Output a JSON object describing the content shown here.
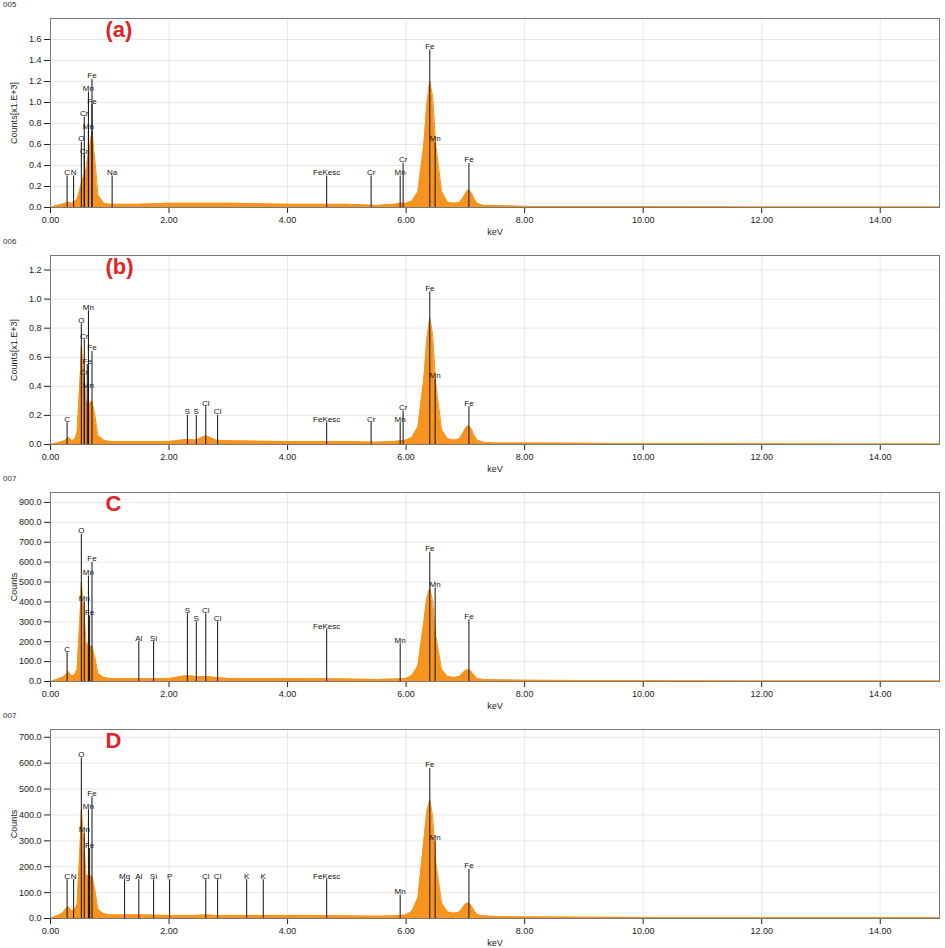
{
  "chart_data": [
    {
      "type": "area",
      "title": "005",
      "annotations": [
        {
          "text": "(a)",
          "color": "#e0252a"
        }
      ],
      "x_label": "keV",
      "y_label": "Counts[x1.E+3]",
      "color": "#f7941d",
      "grid": true,
      "xlim": [
        0,
        15
      ],
      "xticks": [
        {
          "value": 0,
          "label": "0.00"
        },
        {
          "value": 2,
          "label": "2.00"
        },
        {
          "value": 4,
          "label": "4.00"
        },
        {
          "value": 6,
          "label": "6.00"
        },
        {
          "value": 8,
          "label": "8.00"
        },
        {
          "value": 10,
          "label": "10.00"
        },
        {
          "value": 12,
          "label": "12.00"
        },
        {
          "value": 14,
          "label": "14.00"
        }
      ],
      "ylim": [
        0,
        1.8
      ],
      "yticks": [
        {
          "value": 0,
          "label": "0.0"
        },
        0.2,
        0.4,
        0.6,
        0.8,
        {
          "value": 1,
          "label": "1.0"
        },
        1.2,
        1.4,
        1.6
      ],
      "x": [
        0,
        0.1,
        0.2,
        0.25,
        0.3,
        0.35,
        0.4,
        0.45,
        0.5,
        0.55,
        0.6,
        0.65,
        0.7,
        0.75,
        0.8,
        0.9,
        1.0,
        1.5,
        2.0,
        3.0,
        4.0,
        5.0,
        5.5,
        5.8,
        5.9,
        6.0,
        6.1,
        6.2,
        6.3,
        6.35,
        6.4,
        6.45,
        6.5,
        6.6,
        6.7,
        6.8,
        6.9,
        6.95,
        7.0,
        7.05,
        7.1,
        7.15,
        7.2,
        7.3,
        7.5,
        8.0,
        9.0,
        10,
        12,
        14,
        15
      ],
      "values": [
        0,
        0.02,
        0.03,
        0.04,
        0.05,
        0.04,
        0.05,
        0.08,
        0.18,
        0.28,
        0.36,
        0.55,
        0.72,
        0.45,
        0.12,
        0.04,
        0.03,
        0.03,
        0.04,
        0.04,
        0.03,
        0.03,
        0.02,
        0.03,
        0.04,
        0.04,
        0.06,
        0.15,
        0.6,
        0.98,
        1.2,
        1.05,
        0.6,
        0.15,
        0.05,
        0.04,
        0.05,
        0.08,
        0.13,
        0.17,
        0.14,
        0.08,
        0.04,
        0.02,
        0.02,
        0.01,
        0.01,
        0.01,
        0.005,
        0.005,
        0.005
      ],
      "peak_labels": [
        {
          "text": "C",
          "x": 0.28,
          "y": 0.3
        },
        {
          "text": "N",
          "x": 0.39,
          "y": 0.3
        },
        {
          "text": "Cr",
          "x": 0.57,
          "y": 0.5
        },
        {
          "text": "O",
          "x": 0.52,
          "y": 0.62
        },
        {
          "text": "Mn",
          "x": 0.64,
          "y": 0.74
        },
        {
          "text": "Cr",
          "x": 0.57,
          "y": 0.86
        },
        {
          "text": "Fe",
          "x": 0.7,
          "y": 0.98
        },
        {
          "text": "Mn",
          "x": 0.64,
          "y": 1.1
        },
        {
          "text": "Fe",
          "x": 0.7,
          "y": 1.22
        },
        {
          "text": "Na",
          "x": 1.04,
          "y": 0.3
        },
        {
          "text": "FeKesc",
          "x": 4.66,
          "y": 0.3
        },
        {
          "text": "Cr",
          "x": 5.41,
          "y": 0.3
        },
        {
          "text": "Mn",
          "x": 5.9,
          "y": 0.3
        },
        {
          "text": "Cr",
          "x": 5.95,
          "y": 0.42
        },
        {
          "text": "Fe",
          "x": 6.4,
          "y": 1.5
        },
        {
          "text": "Mn",
          "x": 6.49,
          "y": 0.62
        },
        {
          "text": "Fe",
          "x": 7.06,
          "y": 0.42
        }
      ]
    },
    {
      "type": "area",
      "title": "006",
      "annotations": [
        {
          "text": "(b)",
          "color": "#e0252a"
        }
      ],
      "x_label": "keV",
      "y_label": "Counts[x1.E+3]",
      "color": "#f7941d",
      "grid": true,
      "xlim": [
        0,
        15
      ],
      "xticks": [
        {
          "value": 0,
          "label": "0.00"
        },
        {
          "value": 2,
          "label": "2.00"
        },
        {
          "value": 4,
          "label": "4.00"
        },
        {
          "value": 6,
          "label": "6.00"
        },
        {
          "value": 8,
          "label": "8.00"
        },
        {
          "value": 10,
          "label": "10.00"
        },
        {
          "value": 12,
          "label": "12.00"
        },
        {
          "value": 14,
          "label": "14.00"
        }
      ],
      "ylim": [
        0,
        1.3
      ],
      "yticks": [
        {
          "value": 0,
          "label": "0.0"
        },
        0.2,
        0.4,
        0.6,
        0.8,
        {
          "value": 1,
          "label": "1.0"
        },
        1.2
      ],
      "x": [
        0,
        0.1,
        0.2,
        0.25,
        0.3,
        0.35,
        0.4,
        0.45,
        0.5,
        0.52,
        0.55,
        0.6,
        0.65,
        0.7,
        0.75,
        0.8,
        0.9,
        1.0,
        1.5,
        2.0,
        2.3,
        2.45,
        2.62,
        2.8,
        3.0,
        4.0,
        5.0,
        5.5,
        5.8,
        6.0,
        6.1,
        6.2,
        6.3,
        6.35,
        6.4,
        6.45,
        6.5,
        6.6,
        6.7,
        6.8,
        6.9,
        6.95,
        7.0,
        7.05,
        7.1,
        7.15,
        7.2,
        7.3,
        7.5,
        8.0,
        9.0,
        10,
        12,
        14,
        15
      ],
      "values": [
        0,
        0.01,
        0.02,
        0.03,
        0.05,
        0.03,
        0.03,
        0.08,
        0.45,
        0.68,
        0.55,
        0.3,
        0.28,
        0.3,
        0.2,
        0.06,
        0.03,
        0.02,
        0.02,
        0.02,
        0.035,
        0.03,
        0.06,
        0.03,
        0.025,
        0.02,
        0.02,
        0.015,
        0.02,
        0.03,
        0.05,
        0.12,
        0.45,
        0.72,
        0.87,
        0.75,
        0.42,
        0.1,
        0.04,
        0.03,
        0.04,
        0.07,
        0.11,
        0.13,
        0.11,
        0.06,
        0.03,
        0.015,
        0.01,
        0.01,
        0.008,
        0.006,
        0.005,
        0.004,
        0.004
      ],
      "peak_labels": [
        {
          "text": "C",
          "x": 0.28,
          "y": 0.15
        },
        {
          "text": "Mn",
          "x": 0.64,
          "y": 0.38
        },
        {
          "text": "Cr",
          "x": 0.57,
          "y": 0.47
        },
        {
          "text": "Fe",
          "x": 0.62,
          "y": 0.55
        },
        {
          "text": "Fe",
          "x": 0.7,
          "y": 0.64
        },
        {
          "text": "Cr",
          "x": 0.57,
          "y": 0.72
        },
        {
          "text": "O",
          "x": 0.52,
          "y": 0.83
        },
        {
          "text": "Mn",
          "x": 0.64,
          "y": 0.92
        },
        {
          "text": "S",
          "x": 2.31,
          "y": 0.2
        },
        {
          "text": "S",
          "x": 2.46,
          "y": 0.2
        },
        {
          "text": "Cl",
          "x": 2.62,
          "y": 0.26
        },
        {
          "text": "Cl",
          "x": 2.82,
          "y": 0.2
        },
        {
          "text": "FeKesc",
          "x": 4.66,
          "y": 0.15
        },
        {
          "text": "Cr",
          "x": 5.41,
          "y": 0.15
        },
        {
          "text": "Mn",
          "x": 5.9,
          "y": 0.15
        },
        {
          "text": "Cr",
          "x": 5.95,
          "y": 0.23
        },
        {
          "text": "Fe",
          "x": 6.4,
          "y": 1.05
        },
        {
          "text": "Mn",
          "x": 6.49,
          "y": 0.45
        },
        {
          "text": "Fe",
          "x": 7.06,
          "y": 0.26
        }
      ]
    },
    {
      "type": "area",
      "title": "007",
      "annotations": [
        {
          "text": "C",
          "color": "#e0252a"
        }
      ],
      "x_label": "keV",
      "y_label": "Counts",
      "color": "#f7941d",
      "grid": true,
      "xlim": [
        0,
        15
      ],
      "xticks": [
        {
          "value": 0,
          "label": "0.00"
        },
        {
          "value": 2,
          "label": "2.00"
        },
        {
          "value": 4,
          "label": "4.00"
        },
        {
          "value": 6,
          "label": "6.00"
        },
        {
          "value": 8,
          "label": "8.00"
        },
        {
          "value": 10,
          "label": "10.00"
        },
        {
          "value": 12,
          "label": "12.00"
        },
        {
          "value": 14,
          "label": "14.00"
        }
      ],
      "ylim": [
        0,
        950
      ],
      "yticks": [
        {
          "value": 0,
          "label": "0.0"
        },
        {
          "value": 100,
          "label": "100.0"
        },
        {
          "value": 200,
          "label": "200.0"
        },
        {
          "value": 300,
          "label": "300.0"
        },
        {
          "value": 400,
          "label": "400.0"
        },
        {
          "value": 500,
          "label": "500.0"
        },
        {
          "value": 600,
          "label": "600.0"
        },
        {
          "value": 700,
          "label": "700.0"
        },
        {
          "value": 800,
          "label": "800.0"
        },
        {
          "value": 900,
          "label": "900.0"
        }
      ],
      "x": [
        0,
        0.1,
        0.2,
        0.25,
        0.3,
        0.35,
        0.4,
        0.45,
        0.5,
        0.52,
        0.55,
        0.6,
        0.65,
        0.7,
        0.75,
        0.8,
        0.9,
        1.0,
        1.5,
        2.0,
        2.3,
        2.45,
        2.62,
        2.8,
        3.0,
        4.0,
        5.0,
        5.5,
        5.8,
        6.0,
        6.1,
        6.2,
        6.3,
        6.35,
        6.4,
        6.45,
        6.5,
        6.6,
        6.7,
        6.8,
        6.9,
        6.95,
        7.0,
        7.05,
        7.1,
        7.15,
        7.2,
        7.3,
        7.5,
        8.0,
        9.0,
        10,
        12,
        14,
        15
      ],
      "values": [
        0,
        10,
        20,
        30,
        50,
        30,
        30,
        60,
        330,
        500,
        400,
        200,
        170,
        180,
        120,
        40,
        20,
        15,
        15,
        15,
        30,
        25,
        25,
        20,
        15,
        15,
        12,
        10,
        12,
        15,
        30,
        80,
        300,
        420,
        470,
        400,
        230,
        60,
        25,
        20,
        25,
        40,
        55,
        60,
        50,
        30,
        15,
        10,
        8,
        6,
        5,
        4,
        3,
        3,
        3
      ],
      "peak_labels": [
        {
          "text": "C",
          "x": 0.28,
          "y": 145
        },
        {
          "text": "Fe",
          "x": 0.66,
          "y": 330
        },
        {
          "text": "Mn",
          "x": 0.57,
          "y": 400
        },
        {
          "text": "Mn",
          "x": 0.64,
          "y": 530
        },
        {
          "text": "Fe",
          "x": 0.7,
          "y": 600
        },
        {
          "text": "O",
          "x": 0.52,
          "y": 740
        },
        {
          "text": "Al",
          "x": 1.49,
          "y": 200
        },
        {
          "text": "Si",
          "x": 1.74,
          "y": 200
        },
        {
          "text": "S",
          "x": 2.31,
          "y": 340
        },
        {
          "text": "S",
          "x": 2.46,
          "y": 300
        },
        {
          "text": "Cl",
          "x": 2.62,
          "y": 340
        },
        {
          "text": "Cl",
          "x": 2.82,
          "y": 300
        },
        {
          "text": "FeKesc",
          "x": 4.66,
          "y": 260
        },
        {
          "text": "Mn",
          "x": 5.9,
          "y": 190
        },
        {
          "text": "Fe",
          "x": 6.4,
          "y": 650
        },
        {
          "text": "Mn",
          "x": 6.49,
          "y": 470
        },
        {
          "text": "Fe",
          "x": 7.06,
          "y": 310
        }
      ]
    },
    {
      "type": "area",
      "title": "007",
      "annotations": [
        {
          "text": "D",
          "color": "#e0252a"
        }
      ],
      "x_label": "keV",
      "y_label": "Counts",
      "color": "#f7941d",
      "grid": true,
      "xlim": [
        0,
        15
      ],
      "xticks": [
        {
          "value": 0,
          "label": "0.00"
        },
        {
          "value": 2,
          "label": "2.00"
        },
        {
          "value": 4,
          "label": "4.00"
        },
        {
          "value": 6,
          "label": "6.00"
        },
        {
          "value": 8,
          "label": "8.00"
        },
        {
          "value": 10,
          "label": "10.00"
        },
        {
          "value": 12,
          "label": "12.00"
        },
        {
          "value": 14,
          "label": "14.00"
        }
      ],
      "ylim": [
        0,
        730
      ],
      "yticks": [
        {
          "value": 0,
          "label": "0.0"
        },
        {
          "value": 100,
          "label": "100.0"
        },
        {
          "value": 200,
          "label": "200.0"
        },
        {
          "value": 300,
          "label": "300.0"
        },
        {
          "value": 400,
          "label": "400.0"
        },
        {
          "value": 500,
          "label": "500.0"
        },
        {
          "value": 600,
          "label": "600.0"
        },
        {
          "value": 700,
          "label": "700.0"
        }
      ],
      "x": [
        0,
        0.1,
        0.2,
        0.25,
        0.3,
        0.35,
        0.4,
        0.45,
        0.5,
        0.52,
        0.55,
        0.6,
        0.65,
        0.7,
        0.75,
        0.8,
        0.9,
        1.0,
        1.5,
        2.0,
        2.3,
        2.45,
        2.62,
        2.8,
        3.0,
        4.0,
        5.0,
        5.5,
        5.8,
        6.0,
        6.1,
        6.2,
        6.3,
        6.35,
        6.4,
        6.45,
        6.5,
        6.6,
        6.7,
        6.8,
        6.9,
        6.95,
        7.0,
        7.05,
        7.1,
        7.15,
        7.2,
        7.3,
        7.5,
        8.0,
        9.0,
        10,
        12,
        14,
        15
      ],
      "values": [
        0,
        10,
        20,
        35,
        45,
        30,
        30,
        55,
        280,
        420,
        330,
        170,
        160,
        165,
        110,
        35,
        18,
        14,
        14,
        12,
        12,
        12,
        14,
        12,
        12,
        12,
        10,
        9,
        10,
        14,
        28,
        80,
        300,
        410,
        460,
        390,
        220,
        60,
        25,
        20,
        25,
        40,
        55,
        60,
        50,
        30,
        15,
        10,
        8,
        6,
        5,
        4,
        3,
        3,
        3
      ],
      "peak_labels": [
        {
          "text": "C",
          "x": 0.28,
          "y": 150
        },
        {
          "text": "N",
          "x": 0.39,
          "y": 150
        },
        {
          "text": "Fe",
          "x": 0.66,
          "y": 270
        },
        {
          "text": "Mn",
          "x": 0.57,
          "y": 330
        },
        {
          "text": "Mn",
          "x": 0.64,
          "y": 420
        },
        {
          "text": "Fe",
          "x": 0.7,
          "y": 470
        },
        {
          "text": "O",
          "x": 0.52,
          "y": 620
        },
        {
          "text": "Mg",
          "x": 1.25,
          "y": 150
        },
        {
          "text": "Al",
          "x": 1.49,
          "y": 150
        },
        {
          "text": "Si",
          "x": 1.74,
          "y": 150
        },
        {
          "text": "P",
          "x": 2.01,
          "y": 150
        },
        {
          "text": "Cl",
          "x": 2.62,
          "y": 150
        },
        {
          "text": "Cl",
          "x": 2.82,
          "y": 150
        },
        {
          "text": "K",
          "x": 3.31,
          "y": 150
        },
        {
          "text": "K",
          "x": 3.59,
          "y": 150
        },
        {
          "text": "FeKesc",
          "x": 4.66,
          "y": 150
        },
        {
          "text": "Mn",
          "x": 5.9,
          "y": 90
        },
        {
          "text": "Fe",
          "x": 6.4,
          "y": 580
        },
        {
          "text": "Mn",
          "x": 6.49,
          "y": 300
        },
        {
          "text": "Fe",
          "x": 7.06,
          "y": 190
        }
      ]
    }
  ]
}
